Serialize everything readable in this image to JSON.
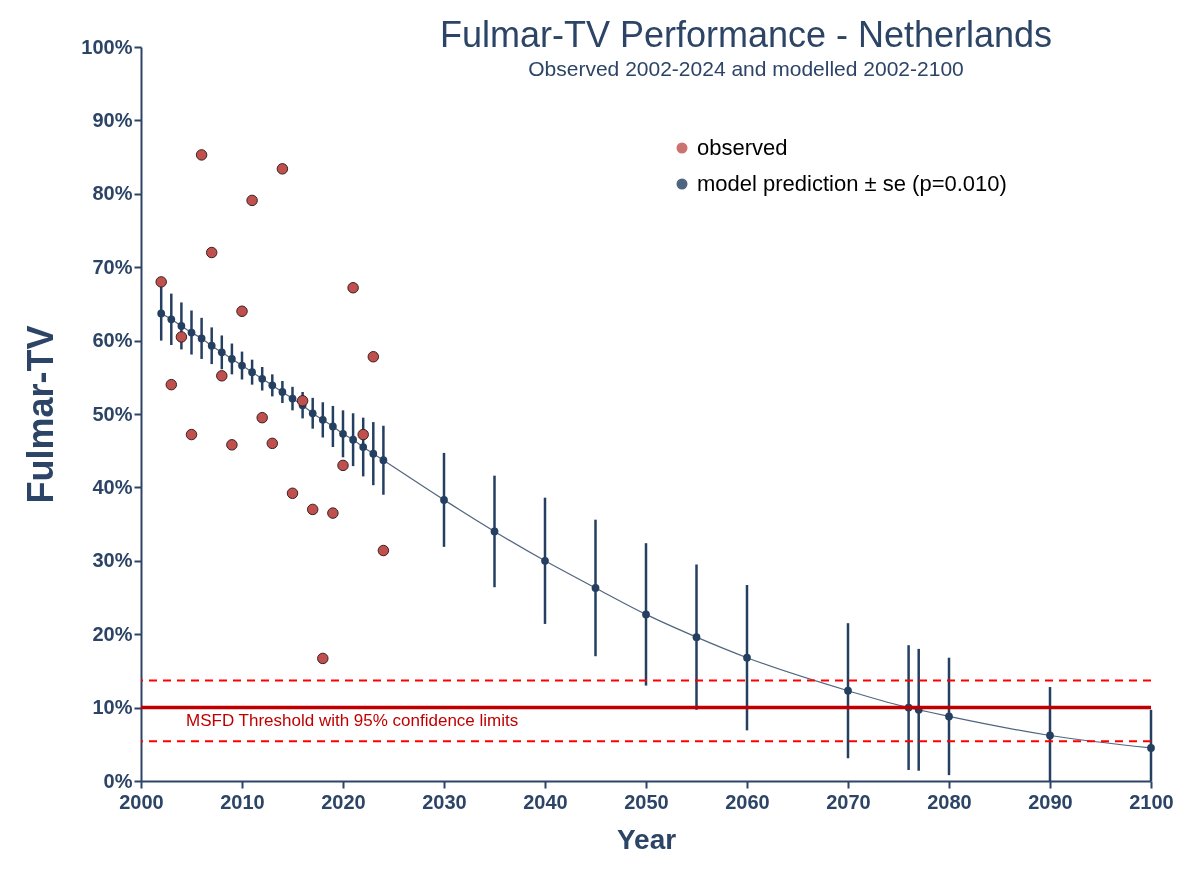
{
  "chart_data": {
    "type": "line",
    "title": "Fulmar-TV Performance - Netherlands",
    "subtitle": "Observed 2002-2024 and modelled 2002-2100",
    "xlabel": "Year",
    "ylabel": "Fulmar-TV",
    "xlim": [
      2000,
      2100
    ],
    "xticks": [
      2000,
      2010,
      2020,
      2030,
      2040,
      2050,
      2060,
      2070,
      2080,
      2090,
      2100
    ],
    "ylim": [
      0,
      100
    ],
    "yticks": [
      {
        "value": 0,
        "label": "0%"
      },
      {
        "value": 10,
        "label": "10%"
      },
      {
        "value": 20,
        "label": "20%"
      },
      {
        "value": 30,
        "label": "30%"
      },
      {
        "value": 40,
        "label": "40%"
      },
      {
        "value": 50,
        "label": "50%"
      },
      {
        "value": 60,
        "label": "60%"
      },
      {
        "value": 70,
        "label": "70%"
      },
      {
        "value": 80,
        "label": "80%"
      },
      {
        "value": 90,
        "label": "90%"
      },
      {
        "value": 100,
        "label": "100%"
      }
    ],
    "grid": false,
    "legend": "top right",
    "marker": "circle",
    "line_style": "solid",
    "series": [
      {
        "name": "observed",
        "type": "scatter",
        "color": "#c0504d",
        "x": [
          2002,
          2003,
          2004,
          2005,
          2006,
          2007,
          2008,
          2009,
          2010,
          2011,
          2012,
          2013,
          2014,
          2015,
          2016,
          2017,
          2018,
          2019,
          2020,
          2021,
          2022,
          2023,
          2024
        ],
        "values": [
          68,
          54,
          60.5,
          47.2,
          85.3,
          72,
          55.2,
          45.8,
          64,
          79.1,
          49.5,
          46,
          83.4,
          39.2,
          51.8,
          37,
          16.7,
          36.5,
          43,
          67.2,
          47.2,
          57.8,
          31.4
        ]
      },
      {
        "name": "model prediction ± se (p=0.010)",
        "color": "#243f60",
        "x": [
          2002,
          2003,
          2004,
          2005,
          2006,
          2007,
          2008,
          2009,
          2010,
          2011,
          2012,
          2013,
          2014,
          2015,
          2016,
          2017,
          2018,
          2019,
          2020,
          2021,
          2022,
          2023,
          2024,
          2030,
          2035,
          2040,
          2045,
          2050,
          2055,
          2060,
          2070,
          2076,
          2077,
          2080,
          2090,
          2100
        ],
        "values": [
          63.7,
          62.9,
          62,
          61.1,
          60.3,
          59.3,
          58.4,
          57.5,
          56.6,
          55.7,
          54.8,
          53.9,
          53,
          52.1,
          51.2,
          50.1,
          49.2,
          48.3,
          47.3,
          46.5,
          45.5,
          44.6,
          43.7,
          38.3,
          34,
          30,
          26.3,
          22.7,
          19.6,
          16.8,
          12.3,
          10,
          9.7,
          8.8,
          6.2,
          4.5
        ],
        "errors": [
          3.7,
          3.5,
          3.2,
          3,
          2.8,
          2.5,
          2.3,
          2.1,
          1.9,
          1.7,
          1.6,
          1.5,
          1.5,
          1.6,
          1.8,
          2.1,
          2.4,
          2.8,
          3.2,
          3.6,
          4,
          4.3,
          4.7,
          6.4,
          7.6,
          8.6,
          9.3,
          9.7,
          9.9,
          9.9,
          9.2,
          8.5,
          8.3,
          8,
          [
            0,
            12.8
          ],
          [
            0,
            9.7
          ]
        ]
      }
    ],
    "ref_lines": [
      {
        "axis": "y",
        "value": 10,
        "label": "MSFD Threshold with 95% confidence limits",
        "color": "#c00000",
        "line_style": "solid"
      },
      {
        "axis": "y",
        "value": 13.7,
        "color": "#ff0000",
        "line_style": "dashed"
      },
      {
        "axis": "y",
        "value": 5.4,
        "color": "#ff0000",
        "line_style": "dashed"
      }
    ]
  }
}
